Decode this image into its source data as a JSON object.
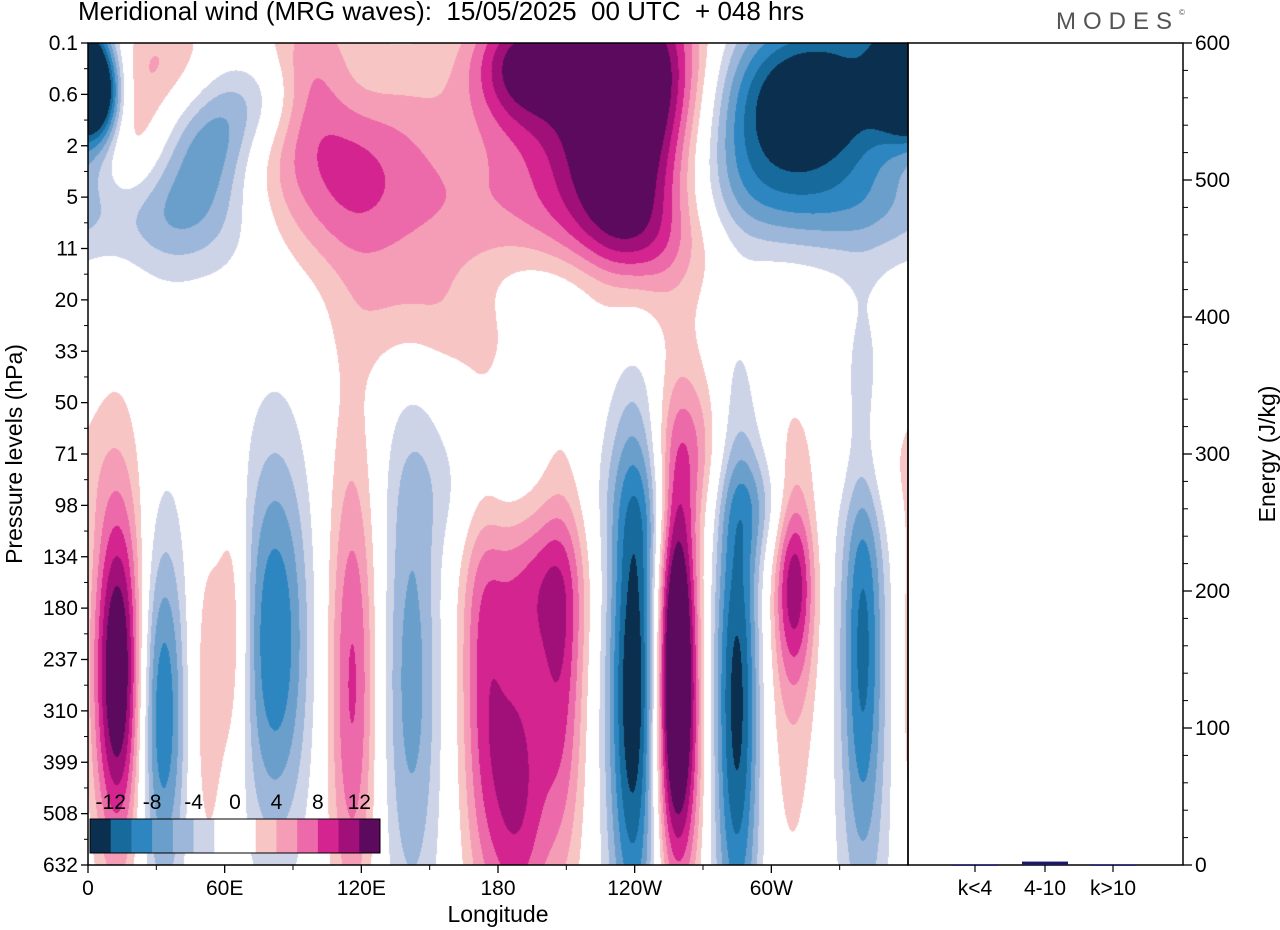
{
  "header": {
    "title": "Meridional wind (MRG waves):  15/05/2025  00 UTC  + 048 hrs",
    "logo": "MODES",
    "logo_mark": "©"
  },
  "chart_data": [
    {
      "type": "heatmap",
      "title": "Meridional wind (MRG waves):  15/05/2025  00 UTC  + 048 hrs",
      "xlabel": "Longitude",
      "ylabel": "Pressure levels (hPa)",
      "x_ticks": [
        "0",
        "60E",
        "120E",
        "180",
        "120W",
        "60W"
      ],
      "y_ticks": [
        "0.1",
        "0.6",
        "2",
        "5",
        "11",
        "20",
        "33",
        "50",
        "71",
        "98",
        "134",
        "180",
        "237",
        "310",
        "399",
        "508",
        "632"
      ],
      "colorbar": {
        "labels": [
          "-12",
          "-8",
          "-4",
          "0",
          "4",
          "8",
          "12"
        ],
        "colors": [
          "#0b2f4f",
          "#176b9c",
          "#2e86c1",
          "#6a9fcc",
          "#9db7da",
          "#ced4e8",
          "#ffffff",
          "#ffffff",
          "#f8c5c5",
          "#f59db7",
          "#ec6aa9",
          "#d3248f",
          "#a10f79",
          "#5c0a5e"
        ]
      },
      "blobs": [
        {
          "lon": 5,
          "lev": 1.0,
          "w": 7,
          "h": 0.7,
          "v": -13
        },
        {
          "lon": 17,
          "lev": 1.9,
          "w": 12,
          "h": 1.1,
          "v": 5
        },
        {
          "lon": 30,
          "lev": 0.3,
          "w": 16,
          "h": 0.8,
          "v": 4
        },
        {
          "lon": 52,
          "lev": 2.0,
          "w": 14,
          "h": 0.8,
          "v": -6
        },
        {
          "lon": 66,
          "lev": 1.2,
          "w": 13,
          "h": 0.8,
          "v": -5
        },
        {
          "lon": 36,
          "lev": 3.2,
          "w": 24,
          "h": 0.8,
          "v": -4
        },
        {
          "lon": 82,
          "lev": 1.0,
          "w": 10,
          "h": 0.7,
          "v": -3
        },
        {
          "lon": 110,
          "lev": 1.7,
          "w": 34,
          "h": 1.4,
          "v": 8
        },
        {
          "lon": 98,
          "lev": 0.5,
          "w": 14,
          "h": 0.9,
          "v": 4
        },
        {
          "lon": 112,
          "lev": 0.8,
          "w": 18,
          "h": 0.8,
          "v": -4
        },
        {
          "lon": 55,
          "lev": 3.6,
          "w": 30,
          "h": 0.9,
          "v": -3
        },
        {
          "lon": 115,
          "lev": 3.5,
          "w": 40,
          "h": 0.9,
          "v": 3
        },
        {
          "lon": 190,
          "lev": 0.4,
          "w": 16,
          "h": 0.9,
          "v": 11
        },
        {
          "lon": 240,
          "lev": 0.5,
          "w": 22,
          "h": 1.3,
          "v": 14
        },
        {
          "lon": 232,
          "lev": 2.0,
          "w": 30,
          "h": 1.6,
          "v": 8
        },
        {
          "lon": 238,
          "lev": 3.6,
          "w": 16,
          "h": 1.3,
          "v": 6
        },
        {
          "lon": 255,
          "lev": 4.2,
          "w": 28,
          "h": 0.9,
          "v": 3
        },
        {
          "lon": 200,
          "lev": 3.0,
          "w": 50,
          "h": 1.0,
          "v": 3
        },
        {
          "lon": 144,
          "lev": 5.2,
          "w": 22,
          "h": 0.9,
          "v": 4
        },
        {
          "lon": 222,
          "lev": 4.7,
          "w": 30,
          "h": 0.6,
          "v": -3
        },
        {
          "lon": 302,
          "lev": 1.6,
          "w": 32,
          "h": 1.3,
          "v": -8
        },
        {
          "lon": 325,
          "lev": 0.8,
          "w": 30,
          "h": 1.1,
          "v": -10
        },
        {
          "lon": 355,
          "lev": 0.5,
          "w": 8,
          "h": 0.8,
          "v": -13
        },
        {
          "lon": 290,
          "lev": 3.0,
          "w": 30,
          "h": 1.0,
          "v": -4
        },
        {
          "lon": 340,
          "lev": 3.2,
          "w": 30,
          "h": 0.7,
          "v": -3
        },
        {
          "lon": 13,
          "lev": 12.3,
          "w": 7,
          "h": 2.2,
          "v": 11
        },
        {
          "lon": 13,
          "lev": 12.0,
          "w": 12,
          "h": 3.4,
          "v": 5
        },
        {
          "lon": 32,
          "lev": 13.0,
          "w": 7,
          "h": 2.2,
          "v": -8
        },
        {
          "lon": 32,
          "lev": 13.0,
          "w": 10,
          "h": 3.8,
          "v": -3
        },
        {
          "lon": 52,
          "lev": 12.8,
          "w": 6,
          "h": 2.6,
          "v": 4
        },
        {
          "lon": 64,
          "lev": 11.5,
          "w": 5,
          "h": 2.0,
          "v": 5
        },
        {
          "lon": 82,
          "lev": 11.5,
          "w": 10,
          "h": 2.5,
          "v": -7
        },
        {
          "lon": 82,
          "lev": 12.0,
          "w": 16,
          "h": 3.3,
          "v": -3
        },
        {
          "lon": 116,
          "lev": 12.5,
          "w": 7,
          "h": 3.0,
          "v": 6
        },
        {
          "lon": 116,
          "lev": 12.2,
          "w": 11,
          "h": 4.5,
          "v": 3
        },
        {
          "lon": 142,
          "lev": 12.3,
          "w": 9,
          "h": 3.2,
          "v": -5
        },
        {
          "lon": 142,
          "lev": 12.5,
          "w": 14,
          "h": 4.5,
          "v": -3
        },
        {
          "lon": 173,
          "lev": 12.2,
          "w": 7,
          "h": 2.8,
          "v": 5
        },
        {
          "lon": 197,
          "lev": 10.4,
          "w": 14,
          "h": 1.2,
          "v": 5
        },
        {
          "lon": 208,
          "lev": 12.3,
          "w": 7,
          "h": 2.6,
          "v": 6
        },
        {
          "lon": 188,
          "lev": 12.0,
          "w": 30,
          "h": 4.2,
          "v": 3
        },
        {
          "lon": 188,
          "lev": 14.6,
          "w": 10,
          "h": 2.2,
          "v": 8
        },
        {
          "lon": 178,
          "lev": 8.6,
          "w": 26,
          "h": 1.0,
          "v": -3
        },
        {
          "lon": 240,
          "lev": 12.6,
          "w": 8,
          "h": 3.4,
          "v": -12
        },
        {
          "lon": 240,
          "lev": 12.5,
          "w": 14,
          "h": 4.5,
          "v": -4
        },
        {
          "lon": 258,
          "lev": 11.5,
          "w": 6,
          "h": 2.2,
          "v": 13
        },
        {
          "lon": 258,
          "lev": 11.8,
          "w": 10,
          "h": 3.0,
          "v": 5
        },
        {
          "lon": 258,
          "lev": 14.5,
          "w": 8,
          "h": 2.0,
          "v": 8
        },
        {
          "lon": 265,
          "lev": 8.1,
          "w": 12,
          "h": 1.3,
          "v": 6
        },
        {
          "lon": 285,
          "lev": 12.8,
          "w": 7,
          "h": 3.4,
          "v": -10
        },
        {
          "lon": 285,
          "lev": 12.6,
          "w": 12,
          "h": 4.6,
          "v": -4
        },
        {
          "lon": 250,
          "lev": 9.0,
          "w": 14,
          "h": 1.0,
          "v": -3
        },
        {
          "lon": 310,
          "lev": 10.4,
          "w": 6,
          "h": 1.4,
          "v": 9
        },
        {
          "lon": 306,
          "lev": 12.0,
          "w": 13,
          "h": 3.8,
          "v": 4
        },
        {
          "lon": 296,
          "lev": 9.0,
          "w": 14,
          "h": 0.8,
          "v": -4
        },
        {
          "lon": 340,
          "lev": 11.6,
          "w": 6,
          "h": 3.0,
          "v": -7
        },
        {
          "lon": 340,
          "lev": 12.4,
          "w": 13,
          "h": 4.6,
          "v": -4
        },
        {
          "lon": 345,
          "lev": 8.1,
          "w": 14,
          "h": 1.0,
          "v": 3
        }
      ]
    },
    {
      "type": "bar",
      "ylabel": "Energy (J/kg)",
      "categories": [
        "k<4",
        "4-10",
        "k>10"
      ],
      "values": [
        0.5,
        2.5,
        0.5
      ],
      "ylim": [
        0,
        600
      ],
      "y_ticks": [
        "0",
        "100",
        "200",
        "300",
        "400",
        "500",
        "600"
      ],
      "bar_color": "#1a1a66"
    }
  ]
}
